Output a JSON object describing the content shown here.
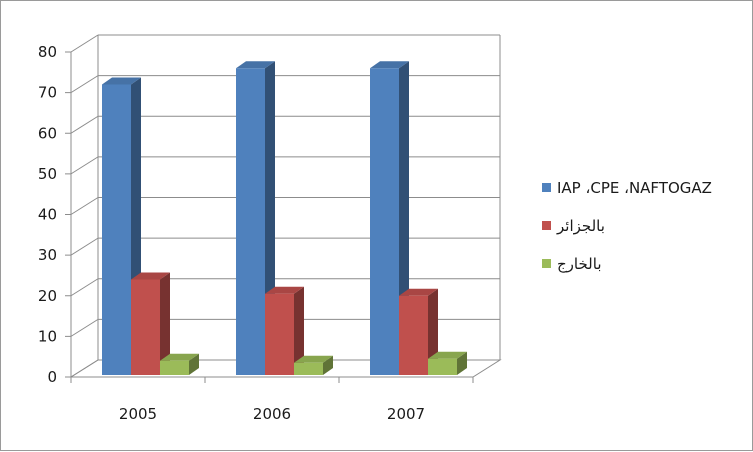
{
  "chart_data": {
    "type": "bar",
    "categories": [
      "2005",
      "2006",
      "2007"
    ],
    "series": [
      {
        "name": "IAP ،CPE ،NAFTOGAZ",
        "values": [
          72,
          76,
          76
        ],
        "color": "#4F81BD"
      },
      {
        "name": "بالجزائر",
        "values": [
          24,
          20.5,
          20
        ],
        "color": "#C0504D"
      },
      {
        "name": "بالخارج",
        "values": [
          4,
          3.5,
          4.5
        ],
        "color": "#9BBB59"
      }
    ],
    "ylim": [
      0,
      80
    ],
    "yticks": [
      0,
      10,
      20,
      30,
      40,
      50,
      60,
      70,
      80
    ],
    "grid": true,
    "legend_position": "right",
    "style": "3d-column"
  }
}
